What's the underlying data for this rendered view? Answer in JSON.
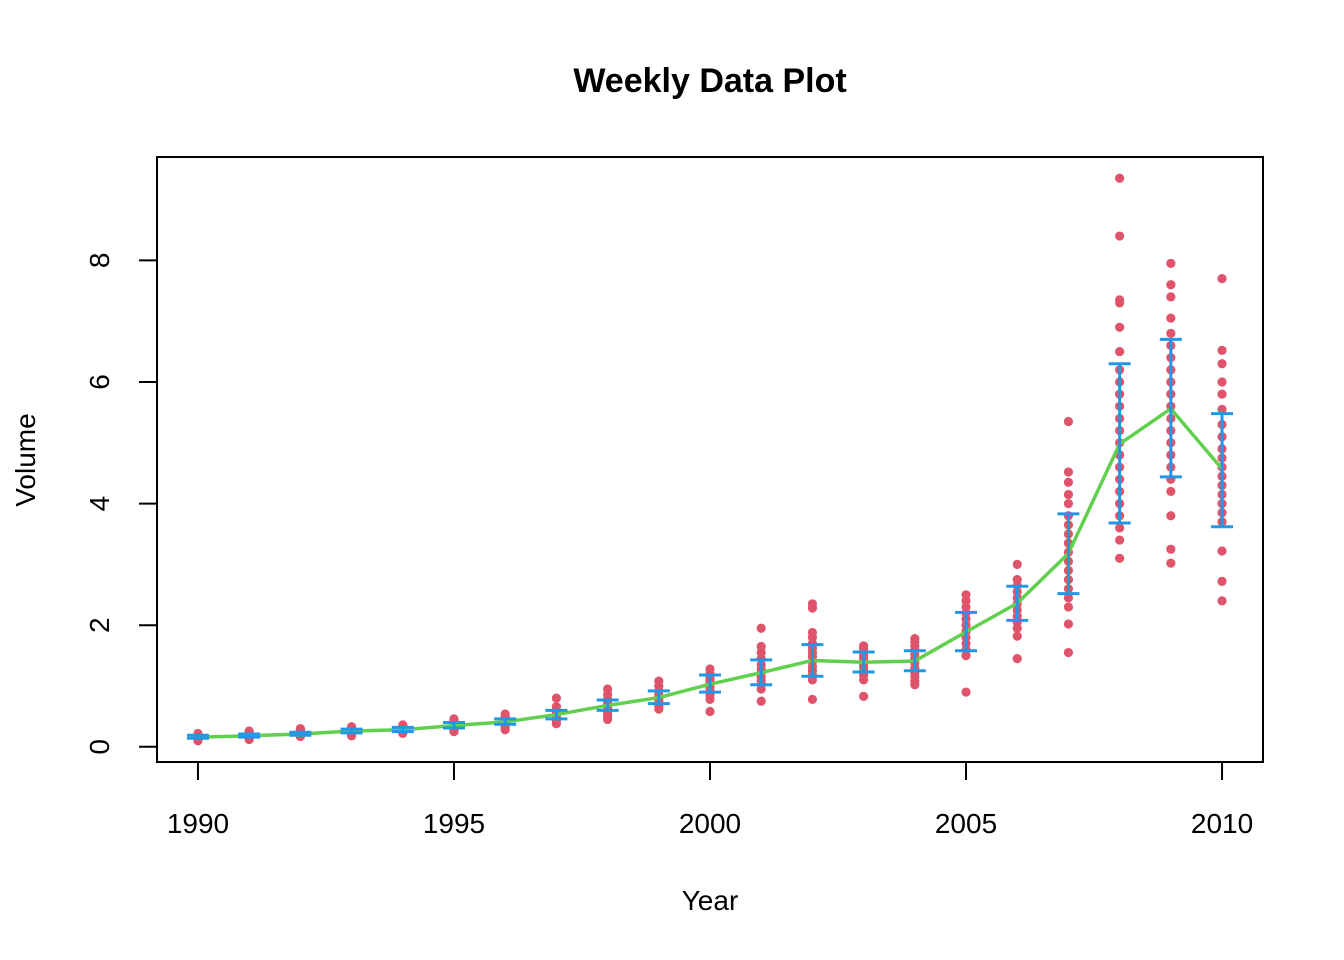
{
  "chart_data": {
    "type": "scatter",
    "title": "Weekly Data Plot",
    "xlabel": "Year",
    "ylabel": "Volume",
    "xlim": [
      1989.2,
      2010.8
    ],
    "ylim": [
      -0.25,
      9.7
    ],
    "x_ticks": [
      "1990",
      "1995",
      "2000",
      "2005",
      "2010"
    ],
    "x_tick_values": [
      1990,
      1995,
      2000,
      2005,
      2010
    ],
    "y_ticks": [
      "0",
      "2",
      "4",
      "6",
      "8"
    ],
    "y_tick_values": [
      0,
      2,
      4,
      6,
      8
    ],
    "grid": false,
    "legend": "none",
    "colors": {
      "points": "#DF536B",
      "mean_line": "#61D04F",
      "error_bars": "#2297E6",
      "axes": "#000000"
    },
    "years": [
      1990,
      1991,
      1992,
      1993,
      1994,
      1995,
      1996,
      1997,
      1998,
      1999,
      2000,
      2001,
      2002,
      2003,
      2004,
      2005,
      2006,
      2007,
      2008,
      2009,
      2010
    ],
    "series": [
      {
        "kind": "points",
        "points_by_year": [
          [
            0.1,
            0.12,
            0.14,
            0.15,
            0.16,
            0.17,
            0.18,
            0.2,
            0.22
          ],
          [
            0.12,
            0.14,
            0.16,
            0.18,
            0.2,
            0.22,
            0.24,
            0.26
          ],
          [
            0.17,
            0.19,
            0.2,
            0.22,
            0.24,
            0.26,
            0.28,
            0.3
          ],
          [
            0.18,
            0.2,
            0.22,
            0.25,
            0.27,
            0.29,
            0.31,
            0.33
          ],
          [
            0.22,
            0.24,
            0.26,
            0.28,
            0.3,
            0.32,
            0.34,
            0.36
          ],
          [
            0.25,
            0.28,
            0.31,
            0.33,
            0.35,
            0.37,
            0.4,
            0.43,
            0.46
          ],
          [
            0.28,
            0.32,
            0.35,
            0.38,
            0.41,
            0.44,
            0.47,
            0.5,
            0.54
          ],
          [
            0.38,
            0.42,
            0.46,
            0.5,
            0.53,
            0.56,
            0.6,
            0.66,
            0.8
          ],
          [
            0.45,
            0.5,
            0.56,
            0.6,
            0.64,
            0.68,
            0.72,
            0.78,
            0.86,
            0.95
          ],
          [
            0.62,
            0.66,
            0.7,
            0.74,
            0.78,
            0.82,
            0.86,
            0.92,
            1.0,
            1.08
          ],
          [
            0.58,
            0.78,
            0.85,
            0.92,
            0.98,
            1.03,
            1.08,
            1.13,
            1.2,
            1.28
          ],
          [
            0.75,
            0.95,
            1.02,
            1.08,
            1.15,
            1.22,
            1.28,
            1.35,
            1.45,
            1.55,
            1.65,
            1.95
          ],
          [
            0.78,
            1.1,
            1.18,
            1.25,
            1.32,
            1.4,
            1.48,
            1.55,
            1.62,
            1.7,
            1.8,
            1.88,
            2.28,
            2.35
          ],
          [
            0.83,
            1.1,
            1.18,
            1.25,
            1.32,
            1.38,
            1.42,
            1.46,
            1.5,
            1.56,
            1.62,
            1.66
          ],
          [
            1.02,
            1.08,
            1.15,
            1.22,
            1.3,
            1.38,
            1.45,
            1.52,
            1.6,
            1.66,
            1.72,
            1.78
          ],
          [
            0.9,
            1.5,
            1.6,
            1.7,
            1.8,
            1.9,
            2.0,
            2.1,
            2.2,
            2.3,
            2.4,
            2.5
          ],
          [
            1.45,
            1.82,
            1.95,
            2.05,
            2.15,
            2.25,
            2.35,
            2.45,
            2.55,
            2.65,
            2.75,
            3.0
          ],
          [
            1.55,
            2.02,
            2.3,
            2.45,
            2.6,
            2.75,
            2.9,
            3.05,
            3.2,
            3.35,
            3.5,
            3.65,
            3.8,
            4.0,
            4.15,
            4.35,
            4.52,
            5.35
          ],
          [
            3.1,
            3.4,
            3.6,
            3.8,
            4.0,
            4.2,
            4.4,
            4.6,
            4.8,
            5.0,
            5.2,
            5.4,
            5.6,
            5.8,
            6.0,
            6.2,
            6.5,
            6.9,
            7.3,
            7.35,
            8.4,
            9.35
          ],
          [
            3.02,
            3.25,
            3.8,
            4.2,
            4.4,
            4.6,
            4.8,
            5.0,
            5.2,
            5.4,
            5.6,
            5.8,
            6.0,
            6.2,
            6.4,
            6.6,
            6.8,
            7.05,
            7.4,
            7.6,
            7.95
          ],
          [
            2.4,
            2.72,
            3.22,
            3.7,
            3.85,
            4.0,
            4.15,
            4.3,
            4.45,
            4.6,
            4.75,
            4.9,
            5.1,
            5.3,
            5.55,
            5.8,
            6.0,
            6.3,
            6.52,
            7.7
          ]
        ]
      },
      {
        "kind": "line",
        "values": [
          0.16,
          0.18,
          0.21,
          0.26,
          0.28,
          0.35,
          0.41,
          0.53,
          0.68,
          0.81,
          1.03,
          1.22,
          1.42,
          1.39,
          1.41,
          1.89,
          2.36,
          3.18,
          4.98,
          5.56,
          4.57
        ]
      },
      {
        "kind": "error_bars",
        "lower": [
          0.14,
          0.16,
          0.19,
          0.23,
          0.25,
          0.31,
          0.37,
          0.46,
          0.6,
          0.71,
          0.9,
          1.02,
          1.16,
          1.23,
          1.25,
          1.58,
          2.08,
          2.52,
          3.68,
          4.44,
          3.62
        ],
        "upper": [
          0.19,
          0.21,
          0.24,
          0.29,
          0.32,
          0.4,
          0.46,
          0.6,
          0.77,
          0.92,
          1.18,
          1.43,
          1.68,
          1.56,
          1.58,
          2.21,
          2.64,
          3.83,
          6.3,
          6.7,
          5.48
        ]
      }
    ]
  }
}
